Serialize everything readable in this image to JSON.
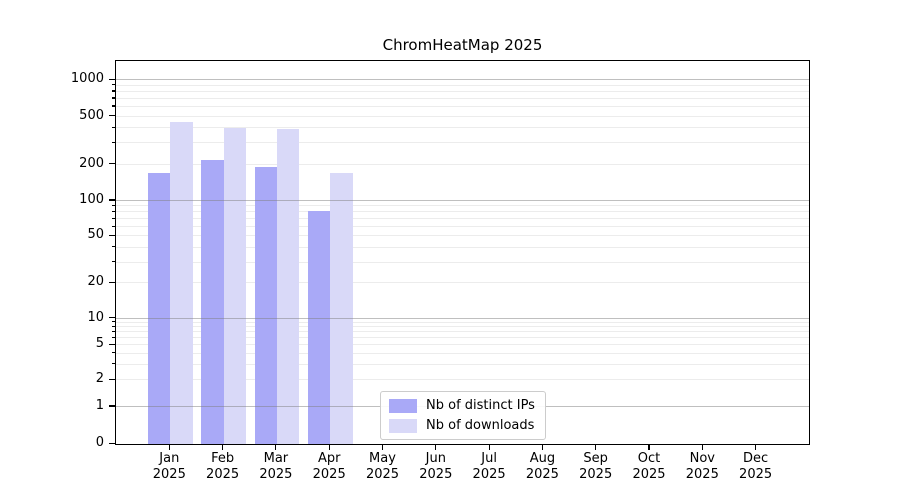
{
  "chart_data": {
    "type": "bar",
    "title": "ChromHeatMap 2025",
    "xlabel": "",
    "ylabel": "",
    "yscale": "symlog",
    "ylim": [
      0,
      1450
    ],
    "yticks": [
      0,
      1,
      2,
      5,
      10,
      20,
      50,
      100,
      200,
      500,
      1000
    ],
    "grid": "both",
    "legend_position": "lower center",
    "categories": [
      {
        "month": "Jan",
        "year": "2025"
      },
      {
        "month": "Feb",
        "year": "2025"
      },
      {
        "month": "Mar",
        "year": "2025"
      },
      {
        "month": "Apr",
        "year": "2025"
      },
      {
        "month": "May",
        "year": "2025"
      },
      {
        "month": "Jun",
        "year": "2025"
      },
      {
        "month": "Jul",
        "year": "2025"
      },
      {
        "month": "Aug",
        "year": "2025"
      },
      {
        "month": "Sep",
        "year": "2025"
      },
      {
        "month": "Oct",
        "year": "2025"
      },
      {
        "month": "Nov",
        "year": "2025"
      },
      {
        "month": "Dec",
        "year": "2025"
      }
    ],
    "series": [
      {
        "name": "Nb of distinct IPs",
        "color": "#a9a9f7",
        "values": [
          170,
          220,
          190,
          83,
          0,
          0,
          0,
          0,
          0,
          0,
          0,
          0
        ]
      },
      {
        "name": "Nb of downloads",
        "color": "#d9d9f8",
        "values": [
          455,
          400,
          395,
          170,
          0,
          0,
          0,
          0,
          0,
          0,
          0,
          0
        ]
      }
    ]
  }
}
